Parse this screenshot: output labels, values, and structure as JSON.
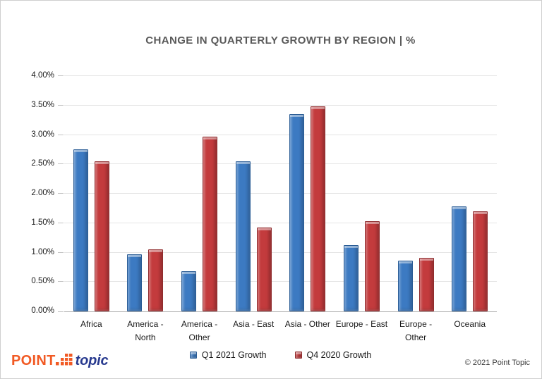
{
  "chart_data": {
    "type": "bar",
    "title": "CHANGE IN QUARTERLY GROWTH BY REGION | %",
    "categories": [
      "Africa",
      "America - North",
      "America - Other",
      "Asia - East",
      "Asia - Other",
      "Europe - East",
      "Europe - Other",
      "Oceania"
    ],
    "categories_wrapped": [
      [
        "Africa"
      ],
      [
        "America -",
        "North"
      ],
      [
        "America -",
        "Other"
      ],
      [
        "Asia - East"
      ],
      [
        "Asia - Other"
      ],
      [
        "Europe - East"
      ],
      [
        "Europe -",
        "Other"
      ],
      [
        "Oceania"
      ]
    ],
    "series": [
      {
        "name": "Q1 2021 Growth",
        "color": "#3c7ac2",
        "values": [
          2.76,
          0.97,
          0.68,
          2.55,
          3.35,
          1.12,
          0.86,
          1.78
        ]
      },
      {
        "name": "Q4 2020 Growth",
        "color": "#c33b3d",
        "values": [
          2.55,
          1.06,
          2.97,
          1.43,
          3.49,
          1.53,
          0.91,
          1.7
        ]
      }
    ],
    "ylabel": "",
    "xlabel": "",
    "ylim": [
      0,
      4
    ],
    "ytick_step": 0.5,
    "ytick_labels": [
      "0.00%",
      "0.50%",
      "1.00%",
      "1.50%",
      "2.00%",
      "2.50%",
      "3.00%",
      "3.50%",
      "4.00%"
    ],
    "grid": true,
    "legend_position": "bottom"
  },
  "footer": {
    "logo_part1": "POINT",
    "logo_part2": "topic",
    "copyright": "© 2021 Point Topic"
  }
}
